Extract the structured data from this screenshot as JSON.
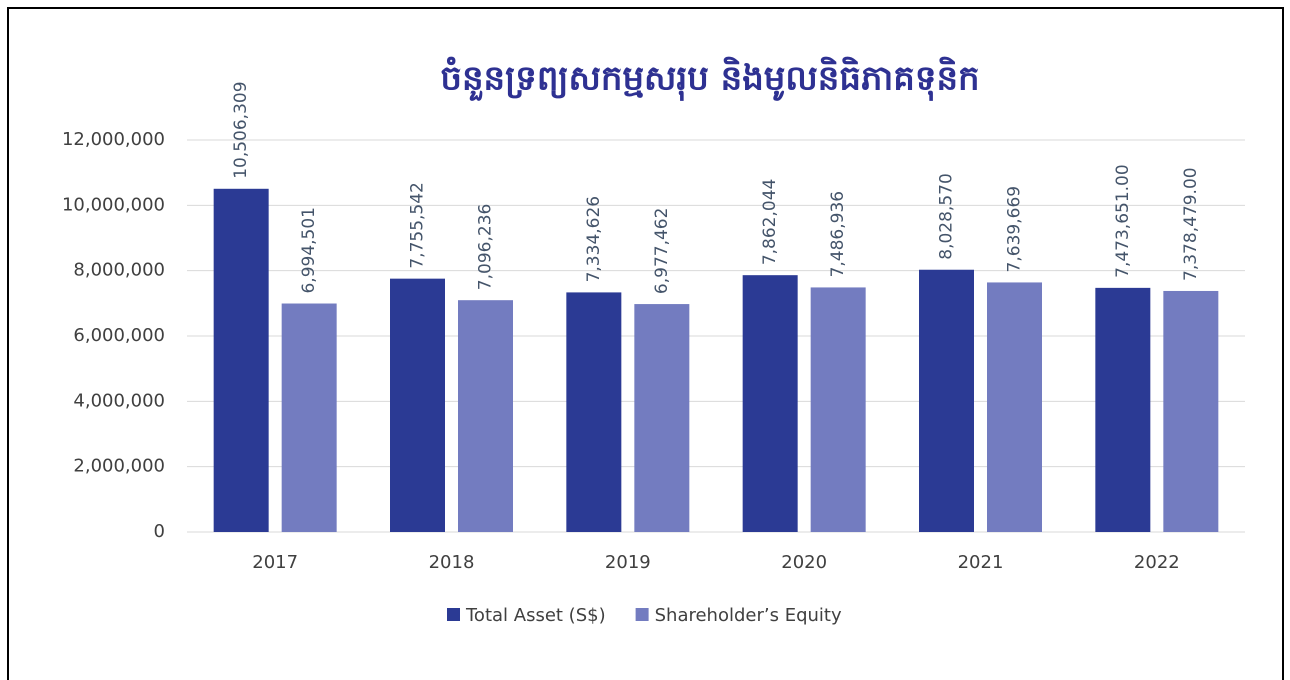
{
  "chart_data": {
    "type": "bar",
    "title": "ចំនួនទ្រព្យសកម្មសរុប និងមូលនិធិភាគទុនិក",
    "categories": [
      "2017",
      "2018",
      "2019",
      "2020",
      "2021",
      "2022"
    ],
    "series": [
      {
        "name": "Total Asset (S$)",
        "color": "#2b3a94",
        "values": [
          10506309,
          7755542,
          7334626,
          7862044,
          8028570,
          7473651
        ],
        "value_labels": [
          "10,506,309",
          "7,755,542",
          "7,334,626",
          "7,862,044",
          "8,028,570",
          "7,473,651.00"
        ]
      },
      {
        "name": "Shareholder’s Equity",
        "color": "#737cc0",
        "values": [
          6994501,
          7096236,
          6977462,
          7486936,
          7639669,
          7378479
        ],
        "value_labels": [
          "6,994,501",
          "7,096,236",
          "6,977,462",
          "7,486,936",
          "7,639,669",
          "7,378,479.00"
        ]
      }
    ],
    "ylim": [
      0,
      12000000
    ],
    "yticks": [
      0,
      {
        "value": 2000000,
        "label": "2,000,000"
      },
      {
        "value": 4000000,
        "label": "4,000,000"
      },
      {
        "value": 6000000,
        "label": "6,000,000"
      },
      {
        "value": 8000000,
        "label": "8,000,000"
      },
      {
        "value": 10000000,
        "label": "10,000,000"
      },
      {
        "value": 12000000,
        "label": "12,000,000"
      }
    ],
    "grid": true,
    "legend": "bottom"
  }
}
